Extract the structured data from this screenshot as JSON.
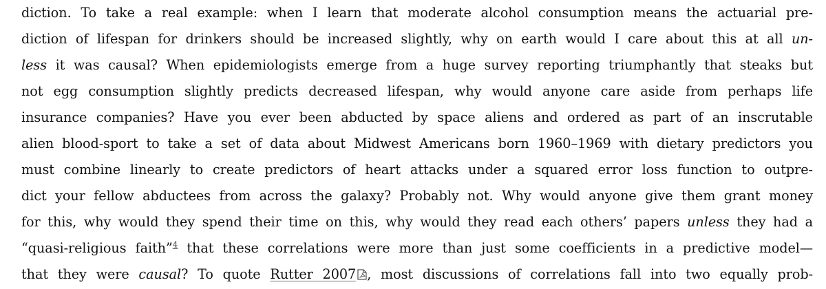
{
  "paragraph": {
    "l1": "diction. To take a real example: when I learn that moderate alcohol consumption means the actuarial pre-",
    "l2a": "diction of lifespan for drinkers should be increased slightly, why on earth would I care about this at all ",
    "l2b": "un-",
    "l3a": "less",
    "l3b": " it was causal? When epidemiologists emerge from a huge survey reporting triumphantly that steaks but",
    "l4": "not egg consumption slightly predicts decreased lifespan, why would anyone care aside from perhaps life",
    "l5": "insurance companies? Have you ever been abducted by space aliens and ordered as part of an inscrutable",
    "l6": "alien blood-sport to take a set of data about Midwest Americans born 1960–1969 with dietary predictors you",
    "l7": "must combine linearly to create predictors of heart attacks under a squared error loss function to outpre-",
    "l8": "dict your fellow abductees from across the galaxy? Probably not. Why would anyone give them grant money",
    "l9a": "for this, why would they spend their time on this, why would they read each others’ papers ",
    "l9b": "unless",
    "l9c": " they had a",
    "l10a": "“quasi-religious faith”",
    "l10fn": "4",
    "l10b": " that these correlations were more than just some coefficients in a predictive model—",
    "l11a": "that they were ",
    "l11b": "causal",
    "l11c": "? To quote ",
    "l11link": "Rutter 2007",
    "l11d": ", most discussions of correlations fall into two equally prob-"
  },
  "icons": {
    "citation_link_icon": "pdf-icon"
  }
}
